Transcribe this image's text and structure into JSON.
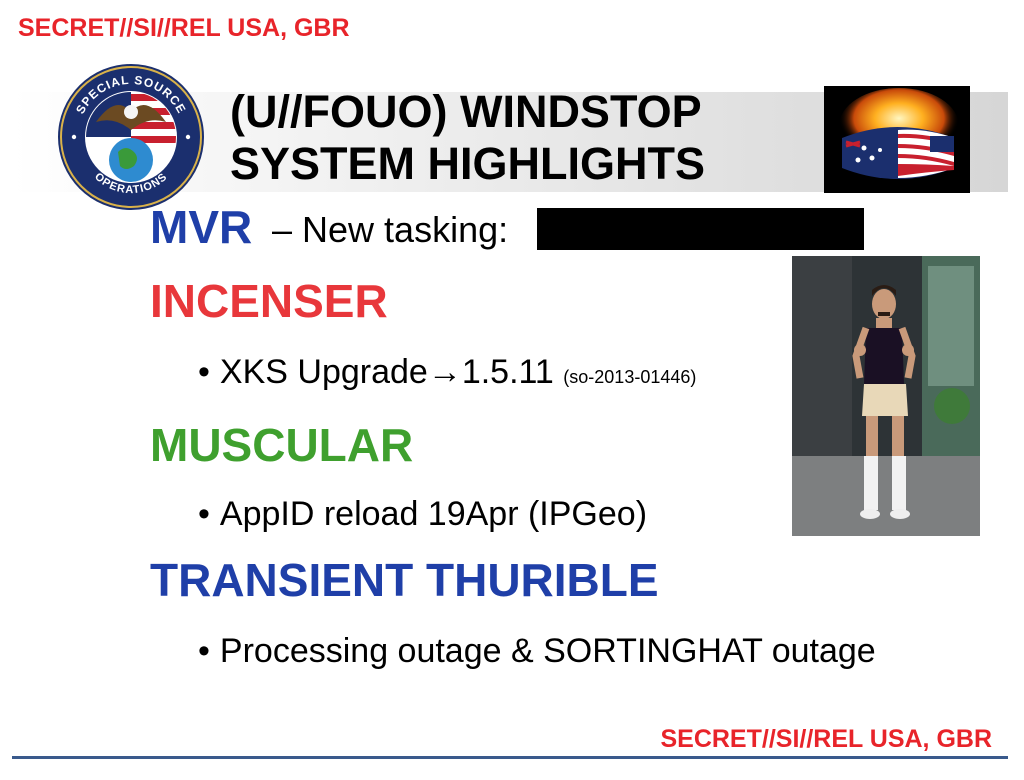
{
  "classification": {
    "top": "SECRET//SI//REL USA, GBR",
    "bottom": "SECRET//SI//REL USA, GBR"
  },
  "title": {
    "line1": "(U//FOUO) WINDSTOP",
    "line2": "SYSTEM HIGHLIGHTS"
  },
  "seal": {
    "top_text": "SPECIAL SOURCE",
    "bottom_text": "OPERATIONS"
  },
  "sections": {
    "mvr": {
      "heading": "MVR",
      "text": "– New tasking:"
    },
    "incenser": {
      "heading": "INCENSER",
      "bullet": "XKS Upgrade",
      "arrow": "→",
      "version": "1.5.11",
      "ref": "(so-2013-01446)"
    },
    "muscular": {
      "heading": "MUSCULAR",
      "bullet": "AppID reload 19Apr (IPGeo)"
    },
    "transient": {
      "heading": "TRANSIENT THURIBLE",
      "bullet": "Processing outage & SORTINGHAT outage"
    }
  },
  "bullet_glyph": "•",
  "colors": {
    "classification": "#e8242a",
    "mvr": "#1f3fa8",
    "incenser": "#e8373b",
    "muscular": "#3fa02e",
    "transient": "#1f3fa8",
    "redaction": "#000000"
  },
  "icons": [
    "seal-logo",
    "flag-bracelet-image",
    "photo-man-in-swimwear"
  ]
}
